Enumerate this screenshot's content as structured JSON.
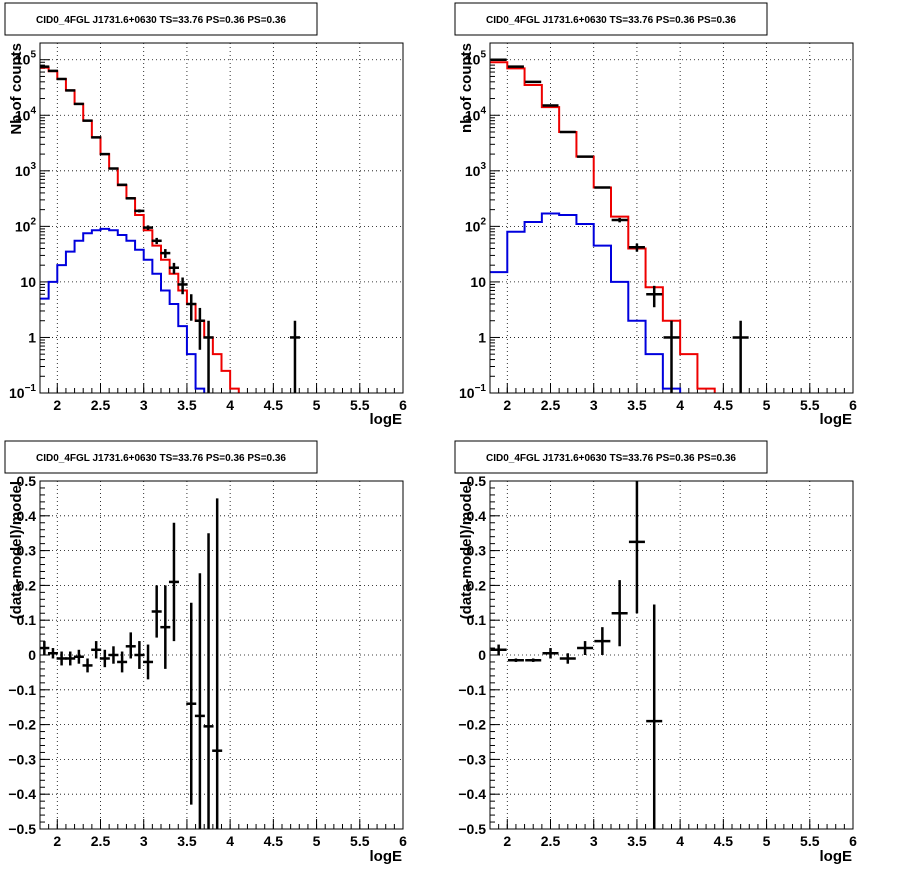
{
  "chart_data": [
    {
      "type": "line",
      "title": "CID0_4FGL J1731.6+0630 TS=33.76 PS=0.36 PS=0.36",
      "xlabel": "logE",
      "ylabel": "Nb of counts",
      "yscale": "log",
      "xlim": [
        1.8,
        6.0
      ],
      "ylim": [
        0.1,
        200000
      ],
      "grid": true,
      "x_tick_labels": [
        "2",
        "2.5",
        "3",
        "3.5",
        "4",
        "4.5",
        "5",
        "5.5",
        "6"
      ],
      "y_tick_labels": [
        {
          "v": 0.1,
          "main": "10",
          "sup": "−1"
        },
        {
          "v": 1,
          "main": "1",
          "sup": ""
        },
        {
          "v": 10,
          "main": "10",
          "sup": ""
        },
        {
          "v": 100,
          "main": "10",
          "sup": "2"
        },
        {
          "v": 1000,
          "main": "10",
          "sup": "3"
        },
        {
          "v": 10000,
          "main": "10",
          "sup": "4"
        },
        {
          "v": 100000,
          "main": "10",
          "sup": "5"
        }
      ],
      "series": [
        {
          "color": "#ee0000",
          "style": "step",
          "edges": [
            1.8,
            1.9,
            2.0,
            2.1,
            2.2,
            2.3,
            2.4,
            2.5,
            2.6,
            2.7,
            2.8,
            2.9,
            3.0,
            3.1,
            3.2,
            3.3,
            3.4,
            3.5,
            3.6,
            3.7,
            3.8,
            3.9,
            4.0,
            4.1,
            4.2,
            4.3,
            4.4,
            4.5,
            4.6,
            4.7,
            4.8,
            4.9,
            5.0,
            5.1,
            5.2,
            5.3,
            5.4,
            5.5,
            5.6,
            5.7,
            5.8,
            5.9,
            6.0
          ],
          "values": [
            72000,
            62000,
            45000,
            28000,
            16000,
            8000,
            4000,
            2000,
            1100,
            550,
            320,
            160,
            85,
            45,
            25,
            14,
            7,
            4,
            2,
            1,
            0.5,
            0.25,
            0.12,
            0.05,
            0.05,
            0.05,
            0.05,
            0.05,
            0.05,
            0.05,
            0.05,
            0.05,
            0.05,
            0.05,
            0.05,
            0.05,
            0.05,
            0.05,
            0.05,
            0.05,
            0.05,
            0.05
          ]
        },
        {
          "color": "#0000dd",
          "style": "step",
          "edges": [
            1.8,
            1.9,
            2.0,
            2.1,
            2.2,
            2.3,
            2.4,
            2.5,
            2.6,
            2.7,
            2.8,
            2.9,
            3.0,
            3.1,
            3.2,
            3.3,
            3.4,
            3.5,
            3.6,
            3.7,
            3.8,
            3.9,
            4.0,
            4.1,
            4.2,
            4.3,
            4.4,
            4.5,
            4.6,
            4.7,
            4.8,
            4.9,
            5.0,
            5.1,
            5.2,
            5.3,
            5.4,
            5.5,
            5.6,
            5.7,
            5.8,
            5.9,
            6.0
          ],
          "values": [
            5,
            10,
            20,
            35,
            55,
            75,
            85,
            90,
            85,
            70,
            55,
            38,
            25,
            14,
            7,
            4,
            1.6,
            0.5,
            0.12,
            0.05,
            0.05,
            0.05,
            0.05,
            0.05,
            0.05,
            0.05,
            0.05,
            0.05,
            0.05,
            0.05,
            0.08,
            0.08,
            0.08,
            0.08,
            0.08,
            0.08,
            0.08,
            0.08,
            0.08,
            0.08,
            0.08,
            0.08
          ]
        }
      ],
      "points": [
        {
          "x": 1.85,
          "y": 75000,
          "ylo": 74000,
          "yhi": 76000
        },
        {
          "x": 1.95,
          "y": 63000,
          "ylo": 62000,
          "yhi": 64000
        },
        {
          "x": 2.05,
          "y": 45000,
          "ylo": 44000,
          "yhi": 46000
        },
        {
          "x": 2.15,
          "y": 28000,
          "ylo": 27500,
          "yhi": 28500
        },
        {
          "x": 2.25,
          "y": 16000,
          "ylo": 15500,
          "yhi": 16500
        },
        {
          "x": 2.35,
          "y": 8000,
          "ylo": 7800,
          "yhi": 8200
        },
        {
          "x": 2.45,
          "y": 4000,
          "ylo": 3900,
          "yhi": 4100
        },
        {
          "x": 2.55,
          "y": 2000,
          "ylo": 1950,
          "yhi": 2050
        },
        {
          "x": 2.65,
          "y": 1100,
          "ylo": 1060,
          "yhi": 1140
        },
        {
          "x": 2.75,
          "y": 560,
          "ylo": 540,
          "yhi": 580
        },
        {
          "x": 2.85,
          "y": 320,
          "ylo": 305,
          "yhi": 335
        },
        {
          "x": 2.95,
          "y": 190,
          "ylo": 178,
          "yhi": 202
        },
        {
          "x": 3.05,
          "y": 95,
          "ylo": 86,
          "yhi": 104
        },
        {
          "x": 3.15,
          "y": 55,
          "ylo": 48,
          "yhi": 62
        },
        {
          "x": 3.25,
          "y": 33,
          "ylo": 27,
          "yhi": 39
        },
        {
          "x": 3.35,
          "y": 18,
          "ylo": 14,
          "yhi": 22
        },
        {
          "x": 3.45,
          "y": 9,
          "ylo": 6,
          "yhi": 12
        },
        {
          "x": 3.55,
          "y": 4,
          "ylo": 2,
          "yhi": 6
        },
        {
          "x": 3.65,
          "y": 2,
          "ylo": 0.6,
          "yhi": 3.4
        },
        {
          "x": 3.75,
          "y": 1,
          "ylo": 0.05,
          "yhi": 2
        },
        {
          "x": 4.75,
          "y": 1,
          "ylo": 0.05,
          "yhi": 2
        }
      ]
    },
    {
      "type": "line",
      "title": "CID0_4FGL J1731.6+0630 TS=33.76 PS=0.36 PS=0.36",
      "xlabel": "logE",
      "ylabel": "nb of counts",
      "yscale": "log",
      "xlim": [
        1.8,
        6.0
      ],
      "ylim": [
        0.1,
        200000
      ],
      "grid": true,
      "x_tick_labels": [
        "2",
        "2.5",
        "3",
        "3.5",
        "4",
        "4.5",
        "5",
        "5.5",
        "6"
      ],
      "y_tick_labels": [
        {
          "v": 0.1,
          "main": "10",
          "sup": "−1"
        },
        {
          "v": 1,
          "main": "1",
          "sup": ""
        },
        {
          "v": 10,
          "main": "10",
          "sup": ""
        },
        {
          "v": 100,
          "main": "10",
          "sup": "2"
        },
        {
          "v": 1000,
          "main": "10",
          "sup": "3"
        },
        {
          "v": 10000,
          "main": "10",
          "sup": "4"
        },
        {
          "v": 100000,
          "main": "10",
          "sup": "5"
        }
      ],
      "series": [
        {
          "color": "#ee0000",
          "style": "step",
          "edges": [
            1.8,
            2.0,
            2.2,
            2.4,
            2.6,
            2.8,
            3.0,
            3.2,
            3.4,
            3.6,
            3.8,
            4.0,
            4.2,
            4.4,
            4.6,
            4.8,
            5.0,
            5.2,
            5.4,
            5.6,
            5.8,
            6.0
          ],
          "values": [
            90000,
            70000,
            35000,
            14000,
            5000,
            1800,
            500,
            150,
            40,
            8,
            2,
            0.5,
            0.12,
            0.05,
            0.05,
            0.05,
            0.05,
            0.05,
            0.05,
            0.05,
            0.05
          ]
        },
        {
          "color": "#0000dd",
          "style": "step",
          "edges": [
            1.8,
            2.0,
            2.2,
            2.4,
            2.6,
            2.8,
            3.0,
            3.2,
            3.4,
            3.6,
            3.8,
            4.0,
            4.2,
            4.4,
            4.6,
            4.8,
            5.0,
            5.2,
            5.4,
            5.6,
            5.8,
            6.0
          ],
          "values": [
            15,
            80,
            120,
            170,
            160,
            110,
            45,
            10,
            2,
            0.5,
            0.12,
            0.05,
            0.05,
            0.05,
            0.05,
            0.05,
            0.08,
            0.08,
            0.08,
            0.08,
            0.08
          ]
        }
      ],
      "points": [
        {
          "x": 1.9,
          "y": 100000,
          "ylo": 99000,
          "yhi": 101000
        },
        {
          "x": 2.1,
          "y": 75000,
          "ylo": 74000,
          "yhi": 76000
        },
        {
          "x": 2.3,
          "y": 40000,
          "ylo": 39500,
          "yhi": 40500
        },
        {
          "x": 2.5,
          "y": 15000,
          "ylo": 14800,
          "yhi": 15200
        },
        {
          "x": 2.7,
          "y": 5000,
          "ylo": 4900,
          "yhi": 5100
        },
        {
          "x": 2.9,
          "y": 1800,
          "ylo": 1750,
          "yhi": 1850
        },
        {
          "x": 3.1,
          "y": 500,
          "ylo": 480,
          "yhi": 520
        },
        {
          "x": 3.3,
          "y": 130,
          "ylo": 118,
          "yhi": 142
        },
        {
          "x": 3.5,
          "y": 42,
          "ylo": 35,
          "yhi": 49
        },
        {
          "x": 3.7,
          "y": 6,
          "ylo": 3.5,
          "yhi": 8.5
        },
        {
          "x": 3.9,
          "y": 1,
          "ylo": 0.05,
          "yhi": 2
        },
        {
          "x": 4.7,
          "y": 1,
          "ylo": 0.05,
          "yhi": 2
        }
      ]
    },
    {
      "type": "scatter",
      "title": "CID0_4FGL J1731.6+0630 TS=33.76 PS=0.36 PS=0.36",
      "xlabel": "logE",
      "ylabel": "(data-model)/model",
      "yscale": "linear",
      "xlim": [
        1.8,
        6.0
      ],
      "ylim": [
        -0.5,
        0.5
      ],
      "grid": true,
      "x_tick_labels": [
        "2",
        "2.5",
        "3",
        "3.5",
        "4",
        "4.5",
        "5",
        "5.5",
        "6"
      ],
      "y_ticks": [
        -0.5,
        -0.4,
        -0.3,
        -0.2,
        -0.1,
        0,
        0.1,
        0.2,
        0.3,
        0.4,
        0.5
      ],
      "y_tick_labels": [
        "−0.5",
        "−0.4",
        "−0.3",
        "−0.2",
        "−0.1",
        "0",
        "0.1",
        "0.2",
        "0.3",
        "0.4",
        "0.5"
      ],
      "points": [
        {
          "x": 1.85,
          "y": 0.02,
          "ylo": 0.0,
          "yhi": 0.04
        },
        {
          "x": 1.95,
          "y": 0.005,
          "ylo": -0.01,
          "yhi": 0.02
        },
        {
          "x": 2.05,
          "y": -0.01,
          "ylo": -0.03,
          "yhi": 0.01
        },
        {
          "x": 2.15,
          "y": -0.01,
          "ylo": -0.03,
          "yhi": 0.01
        },
        {
          "x": 2.25,
          "y": -0.005,
          "ylo": -0.025,
          "yhi": 0.015
        },
        {
          "x": 2.35,
          "y": -0.03,
          "ylo": -0.05,
          "yhi": -0.01
        },
        {
          "x": 2.45,
          "y": 0.015,
          "ylo": -0.01,
          "yhi": 0.04
        },
        {
          "x": 2.55,
          "y": -0.01,
          "ylo": -0.035,
          "yhi": 0.015
        },
        {
          "x": 2.65,
          "y": 0.0,
          "ylo": -0.025,
          "yhi": 0.025
        },
        {
          "x": 2.75,
          "y": -0.02,
          "ylo": -0.05,
          "yhi": 0.01
        },
        {
          "x": 2.85,
          "y": 0.025,
          "ylo": -0.01,
          "yhi": 0.065
        },
        {
          "x": 2.95,
          "y": 0.0,
          "ylo": -0.04,
          "yhi": 0.04
        },
        {
          "x": 3.05,
          "y": -0.02,
          "ylo": -0.07,
          "yhi": 0.03
        },
        {
          "x": 3.15,
          "y": 0.125,
          "ylo": 0.05,
          "yhi": 0.2
        },
        {
          "x": 3.25,
          "y": 0.08,
          "ylo": -0.04,
          "yhi": 0.2
        },
        {
          "x": 3.35,
          "y": 0.21,
          "ylo": 0.04,
          "yhi": 0.38
        },
        {
          "x": 3.55,
          "y": -0.14,
          "ylo": -0.43,
          "yhi": 0.15
        },
        {
          "x": 3.65,
          "y": -0.175,
          "ylo": -0.58,
          "yhi": 0.235
        },
        {
          "x": 3.75,
          "y": -0.205,
          "ylo": -0.76,
          "yhi": 0.35
        },
        {
          "x": 3.85,
          "y": -0.275,
          "ylo": -1.0,
          "yhi": 0.45
        }
      ]
    },
    {
      "type": "scatter",
      "title": "CID0_4FGL J1731.6+0630 TS=33.76 PS=0.36 PS=0.36",
      "xlabel": "logE",
      "ylabel": "(data-model)/model",
      "yscale": "linear",
      "xlim": [
        1.8,
        6.0
      ],
      "ylim": [
        -0.5,
        0.5
      ],
      "grid": true,
      "x_tick_labels": [
        "2",
        "2.5",
        "3",
        "3.5",
        "4",
        "4.5",
        "5",
        "5.5",
        "6"
      ],
      "y_ticks": [
        -0.5,
        -0.4,
        -0.3,
        -0.2,
        -0.1,
        0,
        0.1,
        0.2,
        0.3,
        0.4,
        0.5
      ],
      "y_tick_labels": [
        "−0.5",
        "−0.4",
        "−0.3",
        "−0.2",
        "−0.1",
        "0",
        "0.1",
        "0.2",
        "0.3",
        "0.4",
        "0.5"
      ],
      "points": [
        {
          "x": 1.9,
          "y": 0.015,
          "ylo": 0.0,
          "yhi": 0.03
        },
        {
          "x": 2.1,
          "y": -0.015,
          "ylo": -0.02,
          "yhi": -0.01
        },
        {
          "x": 2.3,
          "y": -0.015,
          "ylo": -0.02,
          "yhi": -0.01
        },
        {
          "x": 2.5,
          "y": 0.005,
          "ylo": -0.01,
          "yhi": 0.02
        },
        {
          "x": 2.7,
          "y": -0.01,
          "ylo": -0.025,
          "yhi": 0.005
        },
        {
          "x": 2.9,
          "y": 0.02,
          "ylo": 0.0,
          "yhi": 0.04
        },
        {
          "x": 3.1,
          "y": 0.04,
          "ylo": 0.0,
          "yhi": 0.08
        },
        {
          "x": 3.3,
          "y": 0.12,
          "ylo": 0.025,
          "yhi": 0.215
        },
        {
          "x": 3.5,
          "y": 0.325,
          "ylo": 0.12,
          "yhi": 0.5
        },
        {
          "x": 3.7,
          "y": -0.19,
          "ylo": -0.6,
          "yhi": 0.145
        }
      ]
    }
  ]
}
